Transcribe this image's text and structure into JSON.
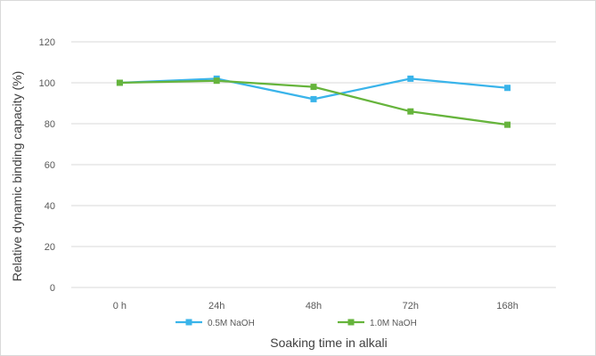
{
  "chart_data": {
    "type": "line",
    "categories": [
      "0 h",
      "24h",
      "48h",
      "72h",
      "168h"
    ],
    "series": [
      {
        "name": "0.5M NaOH",
        "values": [
          100,
          102,
          92,
          102,
          97.5
        ],
        "color": "#3ab4ea"
      },
      {
        "name": "1.0M NaOH",
        "values": [
          100,
          101,
          98,
          86,
          79.5
        ],
        "color": "#66b43c"
      }
    ],
    "title": "",
    "xlabel": "Soaking time in alkali",
    "ylabel": "Relative dynamic binding capacity (%)",
    "ylim": [
      0,
      120
    ],
    "yticks": [
      "0",
      "20",
      "40",
      "60",
      "80",
      "100",
      "120"
    ],
    "grid": true,
    "legend_position": "bottom",
    "gridline_color": "#d9d9d9"
  }
}
